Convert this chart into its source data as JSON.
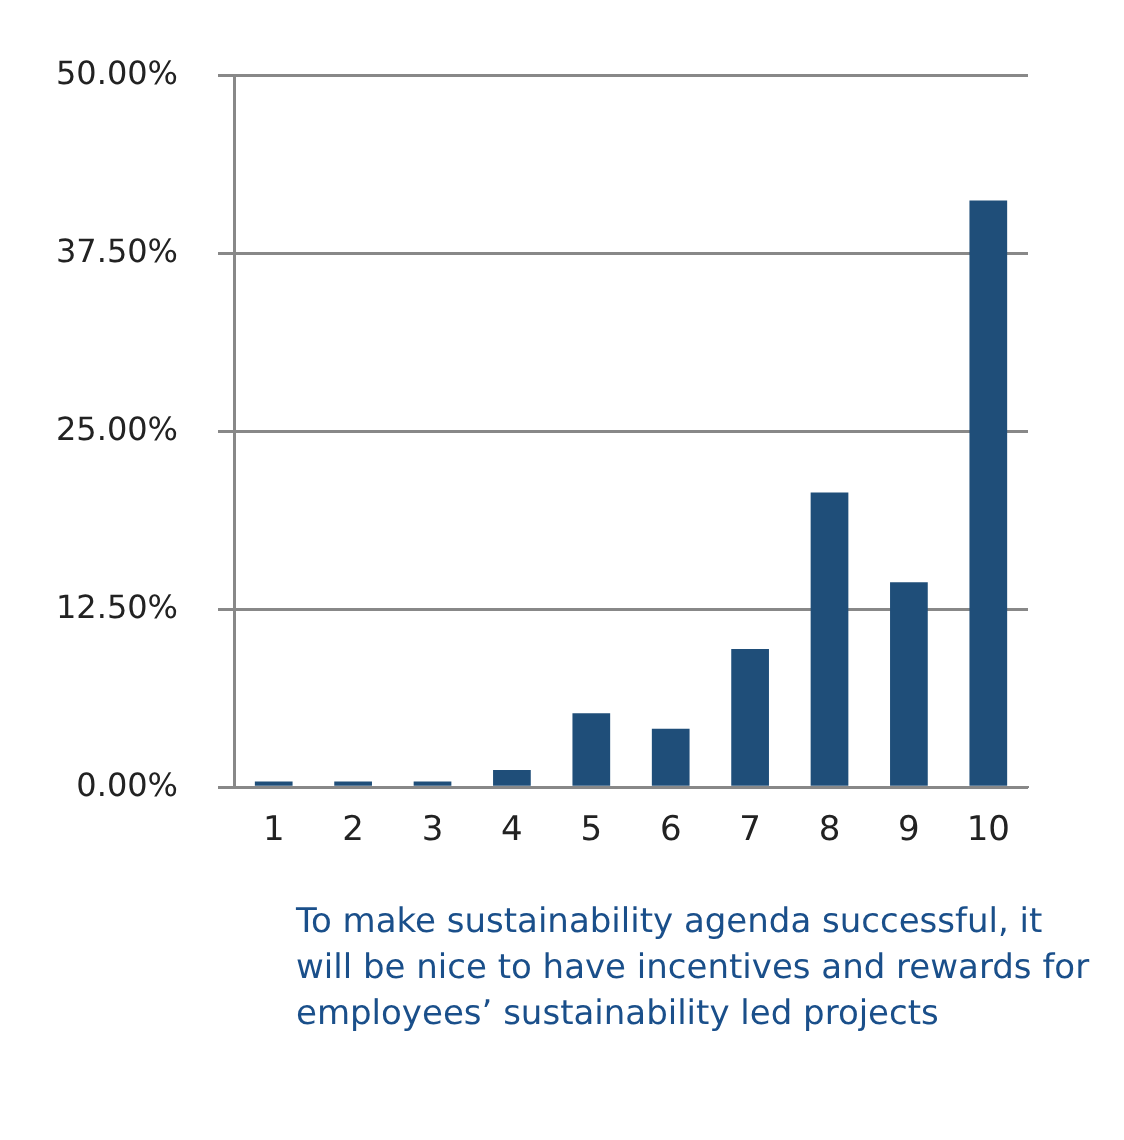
{
  "chart_data": {
    "type": "bar",
    "categories": [
      "1",
      "2",
      "3",
      "4",
      "5",
      "6",
      "7",
      "8",
      "9",
      "10"
    ],
    "values": [
      0.4,
      0.4,
      0.4,
      1.2,
      5.2,
      4.1,
      9.7,
      20.7,
      14.4,
      41.2
    ],
    "color": "#1f4e79",
    "ylim": [
      0,
      50
    ],
    "yticks": [
      {
        "value": 0,
        "label": "0.00%"
      },
      {
        "value": 12.5,
        "label": "12.50%"
      },
      {
        "value": 25,
        "label": "25.00%"
      },
      {
        "value": 37.5,
        "label": "37.50%"
      },
      {
        "value": 50,
        "label": "50.00%"
      }
    ],
    "grid": "y",
    "legend": false,
    "annotations": [
      "To make sustainability agenda successful, it will be nice to have incentives and rewards for employees’ sustainability led projects"
    ]
  }
}
